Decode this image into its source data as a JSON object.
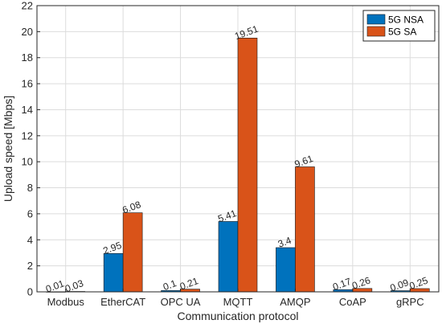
{
  "chart_data": {
    "type": "bar",
    "xlabel": "Communication protocol",
    "ylabel": "Upload speed [Mbps]",
    "ylim": [
      0,
      22
    ],
    "yticks": [
      0,
      2,
      4,
      6,
      8,
      10,
      12,
      14,
      16,
      18,
      20,
      22
    ],
    "grid": true,
    "legend_position": "top-right",
    "categories": [
      "Modbus",
      "EtherCAT",
      "OPC UA",
      "MQTT",
      "AMQP",
      "CoAP",
      "gRPC"
    ],
    "series": [
      {
        "name": "5G NSA",
        "color": "#0072BD",
        "values": [
          0.01,
          2.95,
          0.1,
          5.41,
          3.4,
          0.17,
          0.09
        ],
        "labels": [
          "0.01",
          "2.95",
          "0.1",
          "5.41",
          "3.4",
          "0.17",
          "0.09"
        ]
      },
      {
        "name": "5G SA",
        "color": "#D95319",
        "values": [
          0.03,
          6.08,
          0.21,
          19.51,
          9.61,
          0.26,
          0.25
        ],
        "labels": [
          "0.03",
          "6.08",
          "0.21",
          "19.51",
          "9.61",
          "0.26",
          "0.25"
        ]
      }
    ]
  }
}
